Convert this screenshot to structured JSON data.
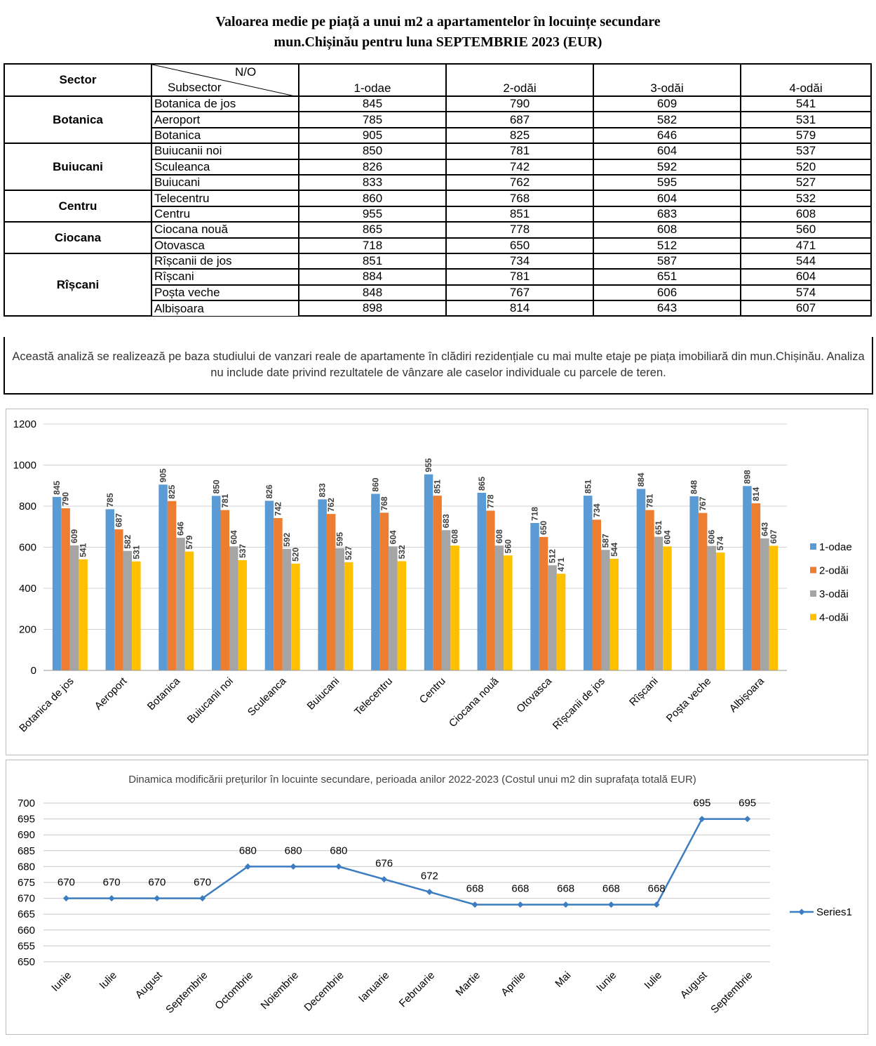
{
  "title": [
    "Valoarea medie pe piață a unui m2 a apartamentelor în locuințe secundare",
    "mun.Chișinău pentru luna SEPTEMBRIE 2023 (EUR)"
  ],
  "table": {
    "header": {
      "sector": "Sector",
      "no": "N/O",
      "subsector": "Subsector",
      "columns": [
        "1-odae",
        "2-odăi",
        "3-odăi",
        "4-odăi"
      ]
    },
    "groups": [
      {
        "sector": "Botanica",
        "rows": [
          {
            "name": "Botanica de jos",
            "values": [
              845,
              790,
              609,
              541
            ]
          },
          {
            "name": "Aeroport",
            "values": [
              785,
              687,
              582,
              531
            ]
          },
          {
            "name": "Botanica",
            "values": [
              905,
              825,
              646,
              579
            ]
          }
        ]
      },
      {
        "sector": "Buiucani",
        "rows": [
          {
            "name": "Buiucanii noi",
            "values": [
              850,
              781,
              604,
              537
            ]
          },
          {
            "name": "Sculeanca",
            "values": [
              826,
              742,
              592,
              520
            ]
          },
          {
            "name": "Buiucani",
            "values": [
              833,
              762,
              595,
              527
            ]
          }
        ]
      },
      {
        "sector": "Centru",
        "rows": [
          {
            "name": "Telecentru",
            "values": [
              860,
              768,
              604,
              532
            ]
          },
          {
            "name": "Centru",
            "values": [
              955,
              851,
              683,
              608
            ]
          }
        ]
      },
      {
        "sector": "Ciocana",
        "rows": [
          {
            "name": "Ciocana nouă",
            "values": [
              865,
              778,
              608,
              560
            ]
          },
          {
            "name": "Otovasca",
            "values": [
              718,
              650,
              512,
              471
            ]
          }
        ]
      },
      {
        "sector": "Rîșcani",
        "rows": [
          {
            "name": "Rîșcanii de jos",
            "values": [
              851,
              734,
              587,
              544
            ]
          },
          {
            "name": "Rîșcani",
            "values": [
              884,
              781,
              651,
              604
            ]
          },
          {
            "name": "Poșta veche",
            "values": [
              848,
              767,
              606,
              574
            ]
          },
          {
            "name": "Albișoara",
            "values": [
              898,
              814,
              643,
              607
            ]
          }
        ]
      }
    ],
    "note": "Această analiză se realizează pe baza studiului de vanzari reale de apartamente în clădiri rezidențiale cu mai multe etaje pe piața imobiliară din mun.Chișinău. Analiza nu include date privind rezultatele de vânzare ale caselor individuale cu parcele de teren."
  },
  "chart_data": [
    {
      "type": "bar",
      "categories": [
        "Botanica de jos",
        "Aeroport",
        "Botanica",
        "Buiucanii noi",
        "Sculeanca",
        "Buiucani",
        "Telecentru",
        "Centru",
        "Ciocana nouă",
        "Otovasca",
        "Rîșcanii de jos",
        "Rîșcani",
        "Poșta veche",
        "Albișoara"
      ],
      "series": [
        {
          "name": "1-odae",
          "color": "#5b9bd5",
          "values": [
            845,
            785,
            905,
            850,
            826,
            833,
            860,
            955,
            865,
            718,
            851,
            884,
            848,
            898
          ]
        },
        {
          "name": "2-odăi",
          "color": "#ed7d31",
          "values": [
            790,
            687,
            825,
            781,
            742,
            762,
            768,
            851,
            778,
            650,
            734,
            781,
            767,
            814
          ]
        },
        {
          "name": "3-odăi",
          "color": "#a5a5a5",
          "values": [
            609,
            582,
            646,
            604,
            592,
            595,
            604,
            683,
            608,
            512,
            587,
            651,
            606,
            643
          ]
        },
        {
          "name": "4-odăi",
          "color": "#ffc000",
          "values": [
            541,
            531,
            579,
            537,
            520,
            527,
            532,
            608,
            560,
            471,
            544,
            604,
            574,
            607
          ]
        }
      ],
      "ylim": [
        0,
        1200
      ],
      "yticks": [
        0,
        200,
        400,
        600,
        800,
        1000,
        1200
      ],
      "grid": true,
      "legend": "right"
    },
    {
      "type": "line",
      "title": "Dinamica modificării prețurilor în locuinte secundare, perioada anilor 2022-2023 (Costul unui m2 din suprafața totală EUR)",
      "categories": [
        "Iunie",
        "Iulie",
        "August",
        "Septembrie",
        "Octombrie",
        "Noiembrie",
        "Decembrie",
        "Ianuarie",
        "Februarie",
        "Martie",
        "Aprilie",
        "Mai",
        "Iunie",
        "Iulie",
        "August",
        "Septembrie"
      ],
      "series": [
        {
          "name": "Series1",
          "color": "#3b7dc0",
          "values": [
            670,
            670,
            670,
            670,
            680,
            680,
            680,
            676,
            672,
            668,
            668,
            668,
            668,
            668,
            695,
            695
          ]
        }
      ],
      "ylim": [
        650,
        700
      ],
      "yticks": [
        650,
        655,
        660,
        665,
        670,
        675,
        680,
        685,
        690,
        695,
        700
      ],
      "grid": true,
      "legend": "right"
    }
  ]
}
